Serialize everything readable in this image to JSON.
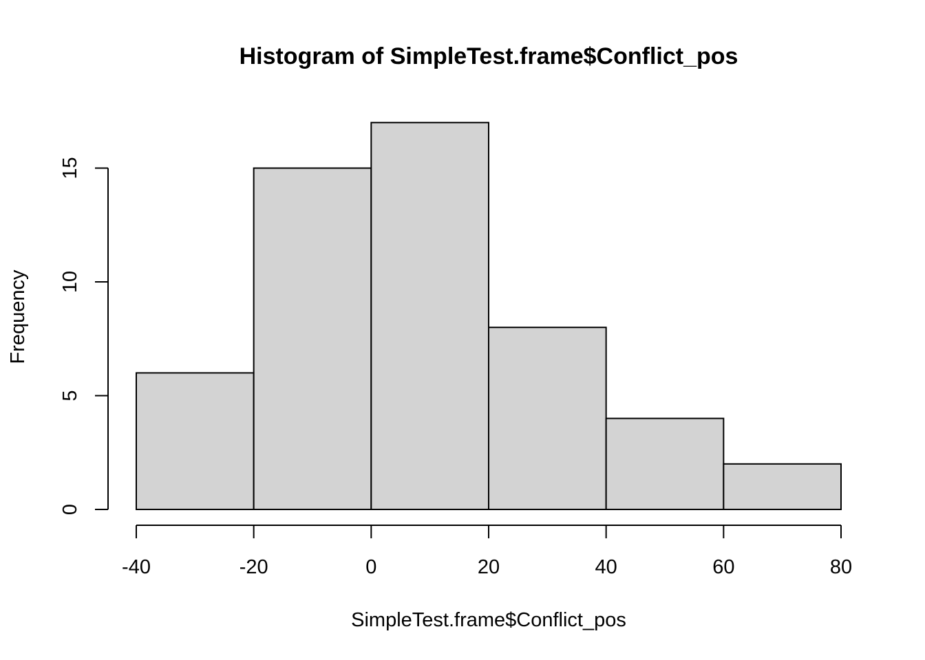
{
  "chart_data": {
    "type": "bar",
    "title": "Histogram of SimpleTest.frame$Conflict_pos",
    "xlabel": "SimpleTest.frame$Conflict_pos",
    "ylabel": "Frequency",
    "bins": [
      {
        "from": -40,
        "to": -20,
        "count": 6
      },
      {
        "from": -20,
        "to": 0,
        "count": 15
      },
      {
        "from": 0,
        "to": 20,
        "count": 17
      },
      {
        "from": 20,
        "to": 40,
        "count": 8
      },
      {
        "from": 40,
        "to": 60,
        "count": 4
      },
      {
        "from": 60,
        "to": 80,
        "count": 2
      }
    ],
    "x_ticks": [
      -40,
      -20,
      0,
      20,
      40,
      60,
      80
    ],
    "y_ticks": [
      0,
      5,
      10,
      15
    ],
    "xlim": [
      -40,
      80
    ],
    "ylim": [
      0,
      17
    ],
    "bar_color": "#d3d3d3",
    "grid": false
  }
}
